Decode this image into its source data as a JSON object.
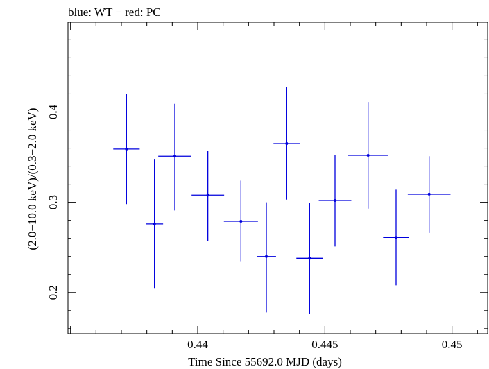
{
  "chart_data": {
    "type": "scatter",
    "title": "blue: WT − red: PC",
    "xlabel": "Time Since 55692.0 MJD (days)",
    "ylabel": "(2.0−10.0 keV)/(0.3−2.0 keV)",
    "xlim": [
      0.4349,
      0.4514
    ],
    "ylim": [
      0.1545,
      0.4995
    ],
    "x_ticks": [
      {
        "value": 0.44,
        "label": "0.44"
      },
      {
        "value": 0.445,
        "label": "0.445"
      },
      {
        "value": 0.45,
        "label": "0.45"
      }
    ],
    "y_ticks": [
      {
        "value": 0.2,
        "label": "0.2"
      },
      {
        "value": 0.3,
        "label": "0.3"
      },
      {
        "value": 0.4,
        "label": "0.4"
      }
    ],
    "series": [
      {
        "color": "#0000dd",
        "points": [
          {
            "x": 0.4372,
            "y": 0.359,
            "xerr": 0.00052,
            "ylo": 0.298,
            "yhi": 0.42
          },
          {
            "x": 0.4383,
            "y": 0.276,
            "xerr": 0.00034,
            "ylo": 0.205,
            "yhi": 0.348
          },
          {
            "x": 0.4391,
            "y": 0.351,
            "xerr": 0.00065,
            "ylo": 0.291,
            "yhi": 0.409
          },
          {
            "x": 0.4404,
            "y": 0.308,
            "xerr": 0.00064,
            "ylo": 0.257,
            "yhi": 0.357
          },
          {
            "x": 0.4417,
            "y": 0.279,
            "xerr": 0.00067,
            "ylo": 0.234,
            "yhi": 0.324
          },
          {
            "x": 0.4427,
            "y": 0.24,
            "xerr": 0.00038,
            "ylo": 0.178,
            "yhi": 0.3
          },
          {
            "x": 0.4435,
            "y": 0.365,
            "xerr": 0.00052,
            "ylo": 0.303,
            "yhi": 0.428
          },
          {
            "x": 0.4444,
            "y": 0.238,
            "xerr": 0.00052,
            "ylo": 0.176,
            "yhi": 0.299
          },
          {
            "x": 0.4454,
            "y": 0.302,
            "xerr": 0.00064,
            "ylo": 0.251,
            "yhi": 0.352
          },
          {
            "x": 0.4467,
            "y": 0.352,
            "xerr": 0.0008,
            "ylo": 0.293,
            "yhi": 0.411
          },
          {
            "x": 0.4478,
            "y": 0.261,
            "xerr": 0.00051,
            "ylo": 0.208,
            "yhi": 0.314
          },
          {
            "x": 0.4491,
            "y": 0.309,
            "xerr": 0.00084,
            "ylo": 0.266,
            "yhi": 0.351
          }
        ]
      }
    ]
  }
}
